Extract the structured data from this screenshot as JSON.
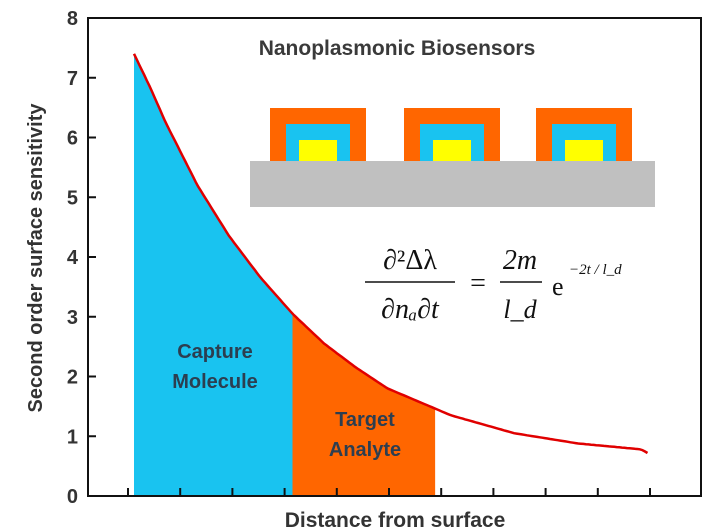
{
  "chart_data": {
    "type": "area",
    "title": "Nanoplasmonic Biosensors",
    "xlabel": "Distance from surface",
    "ylabel": "Second order surface sensitivity",
    "ylim": [
      0,
      8
    ],
    "yticks": [
      "0",
      "1",
      "2",
      "3",
      "4",
      "5",
      "6",
      "7",
      "8"
    ],
    "x_tick_count": 11,
    "x_unlabeled": true,
    "curve": {
      "name": "",
      "color": "#e00000",
      "points": [
        {
          "x": 0.0,
          "y": 7.4
        },
        {
          "x": 0.05,
          "y": 6.85
        },
        {
          "x": 0.1,
          "y": 6.25
        },
        {
          "x": 0.2,
          "y": 5.2
        },
        {
          "x": 0.3,
          "y": 4.35
        },
        {
          "x": 0.4,
          "y": 3.65
        },
        {
          "x": 0.5,
          "y": 3.05
        },
        {
          "x": 0.6,
          "y": 2.55
        },
        {
          "x": 0.7,
          "y": 2.15
        },
        {
          "x": 0.8,
          "y": 1.8
        },
        {
          "x": 1.0,
          "y": 1.35
        },
        {
          "x": 1.2,
          "y": 1.05
        },
        {
          "x": 1.4,
          "y": 0.88
        },
        {
          "x": 1.6,
          "y": 0.78
        },
        {
          "x": 1.62,
          "y": 0.72
        }
      ]
    },
    "regions": [
      {
        "label_line1": "Capture",
        "label_line2": "Molecule",
        "x_start": 0.0,
        "x_end": 0.5,
        "color": "#19c3f0"
      },
      {
        "label_line1": "Target",
        "label_line2": "Analyte",
        "x_start": 0.5,
        "x_end": 0.95,
        "color": "#ff6600"
      }
    ],
    "equation": {
      "lhs_num": "∂²Δλ",
      "lhs_den": "∂nₐ∂t",
      "equals": "=",
      "rhs_num": "2m",
      "rhs_den": "l_d",
      "exp_base": "e",
      "exp_power": "−2t / l_d"
    },
    "inset": {
      "substrate_color": "#c0c0c0",
      "shell_color": "#ff6600",
      "middle_color": "#19c3f0",
      "core_color": "#ffff00",
      "particle_count": 3
    }
  }
}
